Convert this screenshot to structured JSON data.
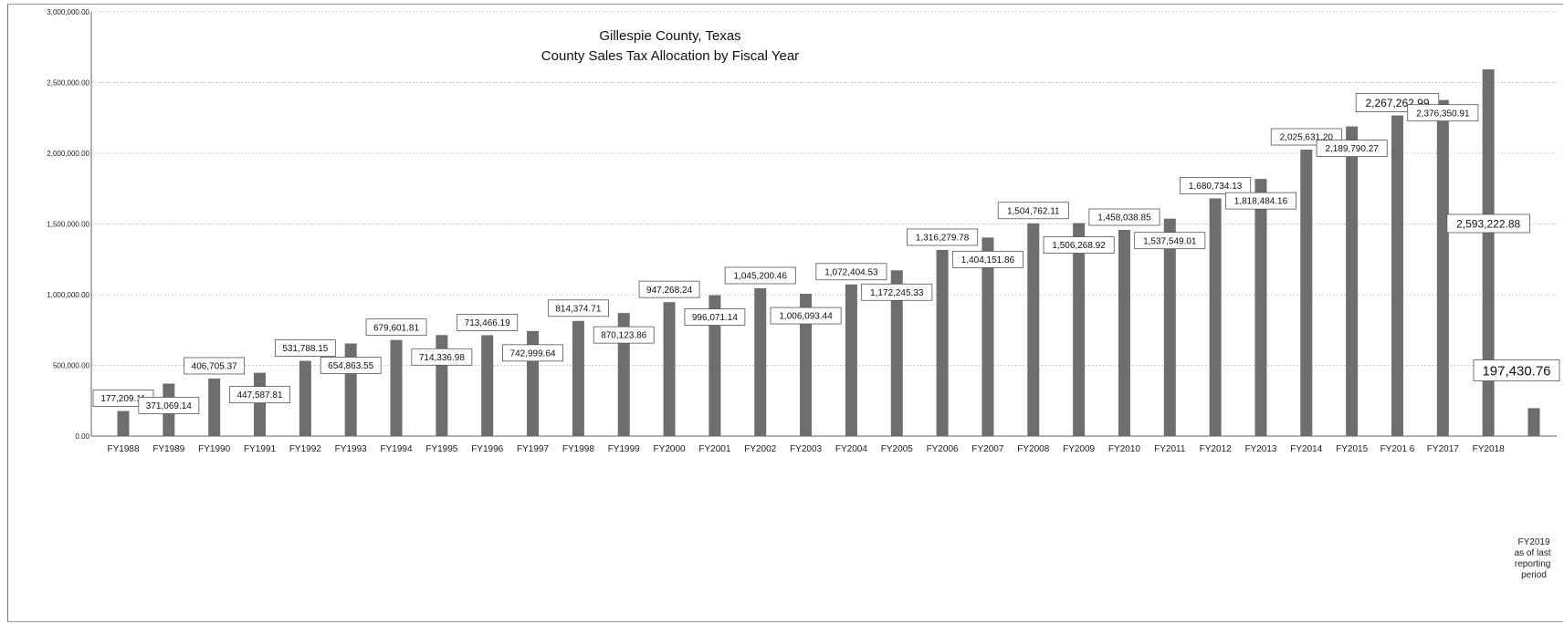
{
  "chart_data": {
    "type": "bar",
    "title": "Gillespie County, Texas",
    "subtitle": "County Sales Tax Allocation by Fiscal Year",
    "xlabel": "",
    "ylabel": "",
    "ylim": [
      0,
      3000000
    ],
    "yticks": [
      "0.00",
      "500,000.00",
      "1,000,000.00",
      "1,500,000.00",
      "2,000,000.00",
      "2,500,000.00",
      "3,000,000.00"
    ],
    "grid": true,
    "legend": "none",
    "categories": [
      "FY1988",
      "FY1989",
      "FY1990",
      "FY1991",
      "FY1992",
      "FY1993",
      "FY1994",
      "FY1995",
      "FY1996",
      "FY1997",
      "FY1998",
      "FY1999",
      "FY2000",
      "FY2001",
      "FY2002",
      "FY2003",
      "FY2004",
      "FY2005",
      "FY2006",
      "FY2007",
      "FY2008",
      "FY2009",
      "FY2010",
      "FY2011",
      "FY2012",
      "FY2013",
      "FY2014",
      "FY2015",
      "FY201 6",
      "FY2017",
      "FY2018",
      "FY2019"
    ],
    "category_note": "as of last reporting period",
    "values": [
      177209.11,
      371069.14,
      406705.37,
      447587.81,
      531788.15,
      654863.55,
      679601.81,
      714336.98,
      713466.19,
      742999.64,
      814374.71,
      870123.86,
      947268.24,
      996071.14,
      1045200.46,
      1006093.44,
      1072404.53,
      1172245.33,
      1316279.78,
      1404151.86,
      1504762.11,
      1506268.92,
      1458038.85,
      1537549.01,
      1680734.13,
      1818484.16,
      2025631.2,
      2189790.27,
      2267262.99,
      2376350.91,
      2593222.88,
      197430.76
    ],
    "data_labels": [
      "177,209.11",
      "371,069.14",
      "406,705.37",
      "447,587.81",
      "531,788.15",
      "654,863.55",
      "679,601.81",
      "714,336.98",
      "713,466.19",
      "742,999.64",
      "814,374.71",
      "870,123.86",
      "947,268.24",
      "996,071.14",
      "1,045,200.46",
      "1,006,093.44",
      "1,072,404.53",
      "1,172,245.33",
      "1,316,279.78",
      "1,404,151.86",
      "1,504,762.11",
      "1,506,268.92",
      "1,458,038.85",
      "1,537,549.01",
      "1,680,734.13",
      "1,818,484.16",
      "2,025,631.20",
      "2,189,790.27",
      "2,267,262.99",
      "2,376,350.91",
      "2,593,222.88",
      "197,430.76"
    ],
    "bar_color": "#6e6e6e"
  }
}
